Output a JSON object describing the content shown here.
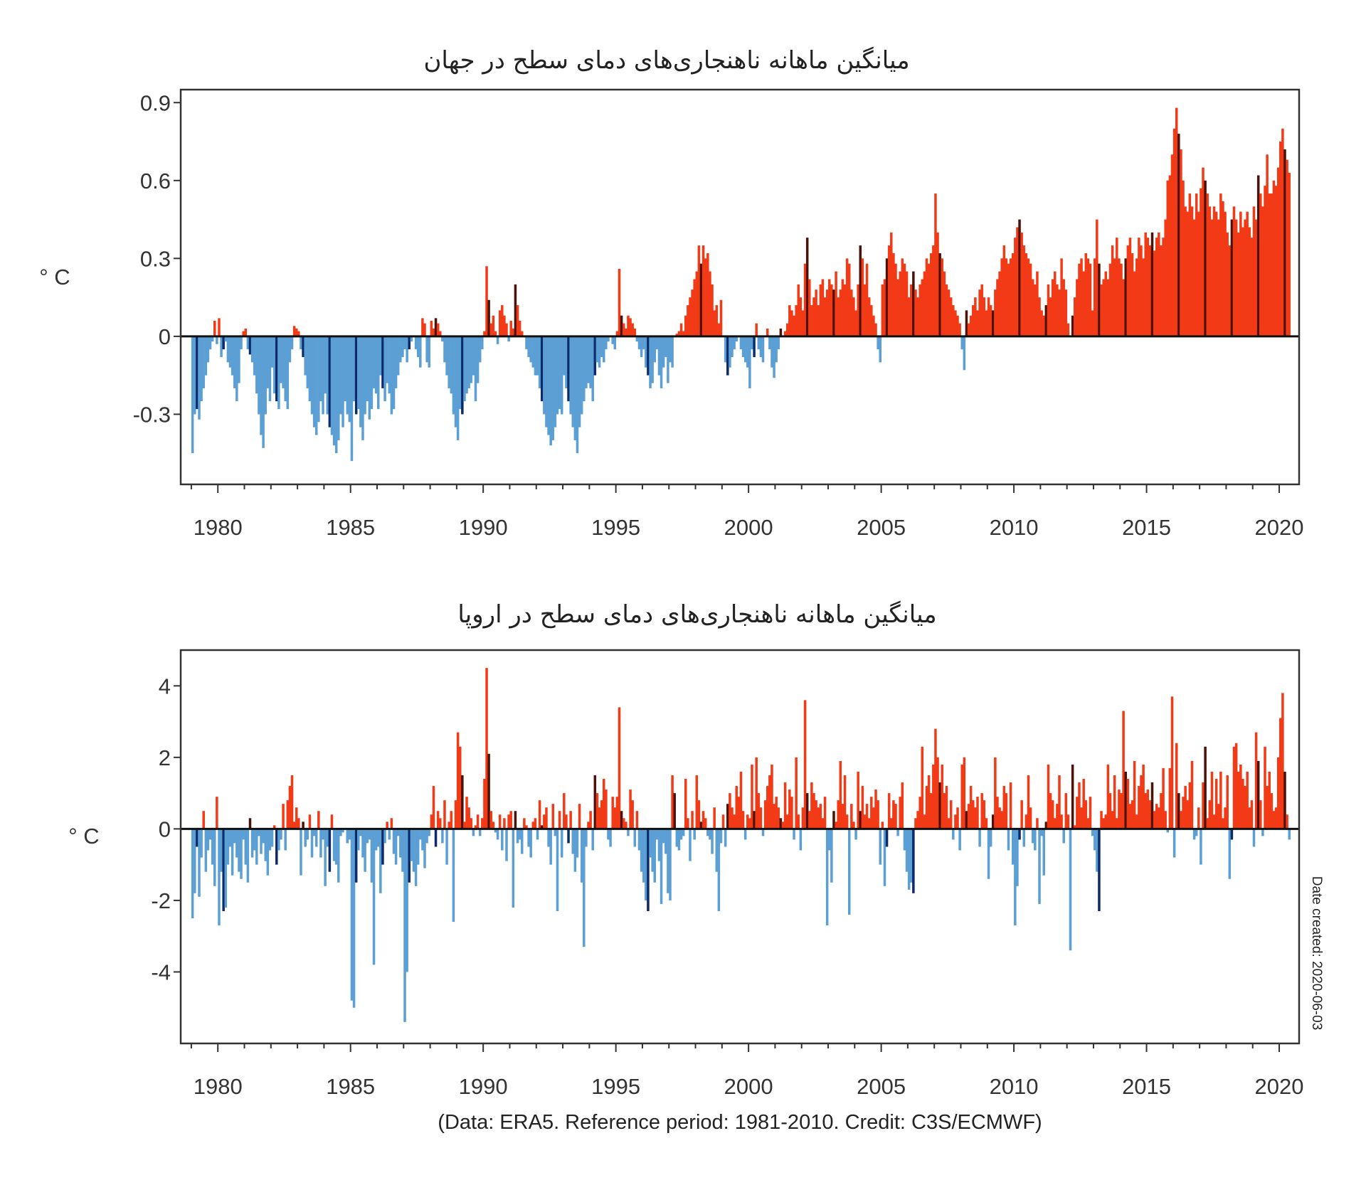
{
  "colors": {
    "negative": "#5b9fd4",
    "negative_highlight": "#0d2a6b",
    "positive": "#f23a16",
    "positive_highlight": "#4a1208",
    "zero_line": "#111111",
    "frame": "#333333"
  },
  "chart_data": [
    {
      "type": "bar",
      "title": "میانگین ماهانه ناهنجاری‌های دمای سطح  در جهان",
      "ylabel": "° C",
      "xlabel": "",
      "frequency": "monthly",
      "start": "1979-01",
      "end": "2020-05",
      "xlim": [
        1978.6,
        2020.75
      ],
      "ylim": [
        -0.57,
        0.95
      ],
      "xticks": [
        1980,
        1985,
        1990,
        1995,
        2000,
        2005,
        2010,
        2015,
        2020
      ],
      "xtick_labels": [
        "1980",
        "1985",
        "1990",
        "1995",
        "2000",
        "2005",
        "2010",
        "2015",
        "2020"
      ],
      "yticks": [
        -0.3,
        0,
        0.3,
        0.6,
        0.9
      ],
      "ytick_labels": [
        "-0.3",
        "0",
        "0.3",
        "0.6",
        "0.9"
      ],
      "grid": false,
      "values": [
        -0.45,
        -0.3,
        -0.28,
        -0.32,
        -0.25,
        -0.2,
        -0.15,
        -0.1,
        -0.05,
        -0.02,
        0.06,
        -0.03,
        0.07,
        -0.08,
        -0.05,
        -0.02,
        -0.1,
        -0.12,
        -0.15,
        -0.2,
        -0.25,
        -0.18,
        -0.05,
        0.02,
        0.03,
        -0.05,
        -0.07,
        -0.1,
        -0.15,
        -0.22,
        -0.3,
        -0.38,
        -0.43,
        -0.3,
        -0.2,
        -0.25,
        -0.12,
        -0.22,
        -0.25,
        -0.28,
        -0.18,
        -0.2,
        -0.25,
        -0.28,
        -0.1,
        -0.05,
        0.04,
        0.03,
        0.02,
        -0.05,
        -0.08,
        -0.15,
        -0.2,
        -0.25,
        -0.3,
        -0.35,
        -0.38,
        -0.33,
        -0.25,
        -0.3,
        -0.22,
        -0.3,
        -0.35,
        -0.38,
        -0.42,
        -0.45,
        -0.4,
        -0.3,
        -0.35,
        -0.25,
        -0.3,
        -0.33,
        -0.48,
        -0.25,
        -0.3,
        -0.28,
        -0.35,
        -0.4,
        -0.3,
        -0.25,
        -0.32,
        -0.28,
        -0.2,
        -0.22,
        -0.28,
        -0.15,
        -0.2,
        -0.25,
        -0.18,
        -0.22,
        -0.3,
        -0.28,
        -0.2,
        -0.15,
        -0.1,
        -0.08,
        -0.05,
        -0.1,
        -0.05,
        -0.02,
        0.0,
        -0.05,
        -0.08,
        -0.12,
        0.07,
        0.05,
        -0.1,
        -0.12,
        0.06,
        0.03,
        0.07,
        0.05,
        0.02,
        -0.02,
        -0.1,
        -0.15,
        -0.2,
        -0.22,
        -0.3,
        -0.35,
        -0.4,
        -0.28,
        -0.3,
        -0.25,
        -0.22,
        -0.2,
        -0.18,
        -0.15,
        -0.25,
        -0.18,
        -0.1,
        -0.05,
        0.02,
        0.27,
        0.14,
        0.05,
        0.08,
        0.02,
        -0.03,
        0.1,
        0.12,
        0.08,
        0.05,
        -0.02,
        0.06,
        0.03,
        0.2,
        0.12,
        0.06,
        0.02,
        0.0,
        -0.05,
        -0.08,
        -0.1,
        -0.12,
        -0.15,
        -0.15,
        -0.2,
        -0.25,
        -0.3,
        -0.35,
        -0.38,
        -0.42,
        -0.4,
        -0.35,
        -0.3,
        -0.28,
        -0.3,
        -0.15,
        -0.2,
        -0.25,
        -0.3,
        -0.35,
        -0.4,
        -0.45,
        -0.35,
        -0.3,
        -0.25,
        -0.2,
        -0.18,
        -0.2,
        -0.25,
        -0.15,
        -0.1,
        -0.12,
        -0.08,
        -0.1,
        -0.05,
        -0.02,
        0.0,
        -0.03,
        -0.05,
        0.02,
        0.26,
        0.08,
        0.05,
        0.03,
        0.08,
        0.07,
        0.05,
        0.03,
        -0.02,
        -0.05,
        -0.08,
        -0.05,
        -0.12,
        -0.15,
        -0.2,
        -0.18,
        -0.1,
        -0.05,
        -0.15,
        -0.2,
        -0.12,
        -0.08,
        -0.18,
        -0.1,
        -0.12,
        0.0,
        0.01,
        0.02,
        0.05,
        0.02,
        0.08,
        0.12,
        0.15,
        0.18,
        0.22,
        0.25,
        0.35,
        0.28,
        0.35,
        0.3,
        0.32,
        0.25,
        0.2,
        0.1,
        0.12,
        0.05,
        0.14,
        0.0,
        -0.1,
        -0.15,
        -0.12,
        -0.08,
        -0.05,
        -0.02,
        0.0,
        -0.05,
        -0.08,
        -0.1,
        -0.12,
        -0.2,
        -0.05,
        -0.08,
        0.05,
        -0.05,
        -0.08,
        -0.1,
        0.0,
        0.03,
        -0.05,
        -0.12,
        -0.16,
        -0.1,
        -0.05,
        0.03,
        0.0,
        0.02,
        0.05,
        0.12,
        0.1,
        0.08,
        0.12,
        0.2,
        0.15,
        0.1,
        0.28,
        0.38,
        0.22,
        0.12,
        0.15,
        0.18,
        0.12,
        0.2,
        0.22,
        0.15,
        0.18,
        0.22,
        0.2,
        0.18,
        0.25,
        0.15,
        0.18,
        0.22,
        0.2,
        0.3,
        0.28,
        0.18,
        0.15,
        0.1,
        0.2,
        0.35,
        0.3,
        0.2,
        0.28,
        0.15,
        0.12,
        0.08,
        0.05,
        -0.05,
        -0.1,
        0.2,
        0.22,
        0.3,
        0.35,
        0.4,
        0.32,
        0.28,
        0.22,
        0.25,
        0.3,
        0.28,
        0.25,
        0.15,
        0.2,
        0.25,
        0.18,
        0.15,
        0.2,
        0.22,
        0.25,
        0.3,
        0.28,
        0.32,
        0.35,
        0.55,
        0.4,
        0.32,
        0.3,
        0.25,
        0.2,
        0.18,
        0.15,
        0.12,
        0.1,
        0.08,
        0.05,
        -0.05,
        -0.13,
        0.1,
        0.05,
        0.08,
        0.12,
        0.15,
        0.1,
        0.18,
        0.2,
        0.15,
        0.1,
        0.15,
        0.12,
        0.1,
        0.18,
        0.22,
        0.25,
        0.3,
        0.35,
        0.3,
        0.28,
        0.3,
        0.32,
        0.38,
        0.42,
        0.45,
        0.4,
        0.35,
        0.32,
        0.3,
        0.28,
        0.22,
        0.2,
        0.25,
        0.15,
        0.1,
        0.08,
        0.12,
        0.2,
        0.15,
        0.22,
        0.25,
        0.2,
        0.18,
        0.3,
        0.22,
        0.18,
        0.05,
        0.0,
        0.08,
        0.15,
        0.22,
        0.28,
        0.3,
        0.25,
        0.32,
        0.3,
        0.28,
        0.1,
        0.3,
        0.45,
        0.28,
        0.2,
        0.22,
        0.25,
        0.22,
        0.28,
        0.35,
        0.3,
        0.38,
        0.3,
        0.28,
        0.22,
        0.3,
        0.35,
        0.38,
        0.32,
        0.25,
        0.3,
        0.38,
        0.35,
        0.3,
        0.4,
        0.38,
        0.35,
        0.4,
        0.33,
        0.38,
        0.4,
        0.35,
        0.38,
        0.45,
        0.6,
        0.62,
        0.7,
        0.8,
        0.88,
        0.78,
        0.72,
        0.6,
        0.5,
        0.48,
        0.55,
        0.5,
        0.45,
        0.55,
        0.48,
        0.57,
        0.65,
        0.6,
        0.55,
        0.5,
        0.45,
        0.5,
        0.48,
        0.45,
        0.55,
        0.52,
        0.48,
        0.4,
        0.35,
        0.45,
        0.5,
        0.45,
        0.4,
        0.48,
        0.42,
        0.45,
        0.48,
        0.42,
        0.38,
        0.5,
        0.45,
        0.62,
        0.55,
        0.5,
        0.58,
        0.7,
        0.55,
        0.55,
        0.6,
        0.58,
        0.65,
        0.75,
        0.8,
        0.72,
        0.68,
        0.63
      ]
    },
    {
      "type": "bar",
      "title": "میانگین ماهانه ناهنجاری‌های دمای سطح در اروپا",
      "ylabel": "° C",
      "xlabel": "",
      "frequency": "monthly",
      "start": "1979-01",
      "end": "2020-05",
      "xlim": [
        1978.6,
        2020.75
      ],
      "ylim": [
        -6,
        5
      ],
      "xticks": [
        1980,
        1985,
        1990,
        1995,
        2000,
        2005,
        2010,
        2015,
        2020
      ],
      "xtick_labels": [
        "1980",
        "1985",
        "1990",
        "1995",
        "2000",
        "2005",
        "2010",
        "2015",
        "2020"
      ],
      "yticks": [
        -4,
        -2,
        0,
        2,
        4
      ],
      "ytick_labels": [
        "-4",
        "-2",
        "0",
        "2",
        "4"
      ],
      "grid": false,
      "values": [
        -2.5,
        -1.8,
        -0.5,
        -1.9,
        -0.8,
        0.5,
        -1.2,
        -0.6,
        -0.3,
        -1.0,
        -1.6,
        0.9,
        -2.7,
        -1.2,
        -2.3,
        -2.2,
        -1.0,
        -0.5,
        -1.3,
        -0.4,
        -0.8,
        -1.2,
        -1.4,
        -0.3,
        -1.0,
        -1.5,
        0.3,
        -0.8,
        -0.6,
        -1.0,
        -0.2,
        -0.7,
        -0.4,
        -0.9,
        -1.3,
        -0.6,
        -0.5,
        0.1,
        -1.0,
        -0.6,
        -0.3,
        0.7,
        -0.6,
        0.8,
        1.2,
        1.5,
        0.2,
        0.6,
        0.3,
        -1.3,
        0.2,
        -0.5,
        -0.3,
        0.4,
        -0.8,
        -0.2,
        -0.5,
        0.5,
        -0.8,
        -0.3,
        -1.6,
        -0.5,
        -1.2,
        0.4,
        -0.9,
        -1.0,
        -1.5,
        -0.2,
        -0.1,
        0.0,
        -0.4,
        -0.3,
        -4.8,
        -5.0,
        -1.5,
        -0.6,
        -0.2,
        -0.8,
        -1.2,
        -0.4,
        -0.3,
        -1.5,
        -3.8,
        -0.6,
        -0.5,
        -1.8,
        -1.0,
        -0.4,
        0.2,
        -0.3,
        0.3,
        -0.7,
        -1.0,
        -0.2,
        -0.8,
        -1.2,
        -5.4,
        -4.0,
        -1.5,
        -0.9,
        -1.2,
        -1.6,
        -1.0,
        -0.3,
        -0.6,
        -1.1,
        -0.4,
        -0.2,
        0.4,
        1.2,
        -0.5,
        0.5,
        0.3,
        -0.4,
        0.8,
        -1.0,
        0.2,
        0.5,
        -2.6,
        0.8,
        2.7,
        2.3,
        1.5,
        0.2,
        0.9,
        0.6,
        0.3,
        -0.2,
        0.1,
        0.4,
        -0.2,
        0.3,
        1.4,
        4.5,
        2.1,
        0.5,
        0.2,
        -0.1,
        -0.3,
        0.4,
        -0.6,
        0.3,
        -0.9,
        0.4,
        0.5,
        -2.2,
        0.5,
        -0.4,
        -0.3,
        -0.7,
        0.3,
        0.1,
        -0.5,
        -0.8,
        0.2,
        0.3,
        -0.3,
        0.8,
        0.1,
        0.4,
        0.6,
        -0.5,
        -1.0,
        0.7,
        -0.2,
        -2.3,
        0.5,
        -0.8,
        1.0,
        0.4,
        -0.4,
        0.5,
        -0.7,
        -1.2,
        -0.8,
        0.7,
        -1.5,
        -3.3,
        -0.5,
        0.2,
        0.5,
        -0.6,
        1.5,
        1.0,
        0.6,
        0.8,
        1.4,
        1.1,
        -0.3,
        -0.5,
        0.9,
        0.6,
        0.9,
        3.4,
        0.5,
        0.3,
        0.2,
        -0.2,
        1.1,
        0.8,
        -0.5,
        0.5,
        -0.6,
        -1.2,
        -1.5,
        -2.0,
        -2.3,
        -0.8,
        -1.2,
        -1.5,
        -0.3,
        -0.9,
        -2.1,
        -0.4,
        -0.7,
        -1.8,
        -2.0,
        1.5,
        1.0,
        -0.5,
        -0.6,
        -0.3,
        -0.2,
        1.4,
        0.3,
        -0.9,
        0.5,
        -0.3,
        1.5,
        0.8,
        0.2,
        0.5,
        0.3,
        -0.2,
        -0.3,
        -0.7,
        0.6,
        -1.2,
        -2.3,
        -0.4,
        0.4,
        -0.5,
        0.7,
        1.0,
        0.6,
        0.4,
        1.2,
        0.9,
        1.6,
        0.5,
        -0.3,
        0.4,
        0.3,
        1.8,
        0.5,
        2.0,
        1.0,
        0.6,
        -0.2,
        0.8,
        1.2,
        1.5,
        1.8,
        0.7,
        0.9,
        0.6,
        0.3,
        0.2,
        1.3,
        0.4,
        1.1,
        0.9,
        -0.3,
        2.0,
        0.4,
        -0.6,
        0.6,
        3.6,
        1.0,
        0.5,
        1.3,
        1.0,
        0.8,
        0.6,
        0.7,
        0.3,
        0.9,
        -2.7,
        -0.6,
        -1.5,
        0.5,
        0.2,
        0.8,
        1.9,
        0.7,
        1.5,
        0.4,
        -2.4,
        0.7,
        0.2,
        -0.3,
        1.6,
        0.5,
        1.2,
        0.4,
        0.7,
        0.3,
        0.9,
        0.6,
        1.1,
        0.8,
        -1.0,
        0.2,
        -1.6,
        -0.5,
        1.0,
        0.3,
        0.8,
        0.7,
        -0.2,
        0.9,
        1.3,
        -0.6,
        -1.2,
        -1.7,
        -1.5,
        -1.8,
        0.3,
        0.5,
        0.9,
        2.3,
        0.4,
        1.2,
        1.5,
        1.0,
        1.8,
        2.8,
        2.0,
        1.3,
        1.8,
        1.0,
        1.2,
        0.3,
        0.8,
        -0.3,
        0.4,
        0.6,
        -0.6,
        1.8,
        2.0,
        0.5,
        0.7,
        1.2,
        0.8,
        0.6,
        0.9,
        -0.5,
        1.0,
        0.8,
        0.3,
        -1.4,
        -0.5,
        0.4,
        2.0,
        0.9,
        0.6,
        0.5,
        1.2,
        1.0,
        -0.6,
        1.3,
        -1.0,
        -2.7,
        -1.6,
        -0.3,
        0.8,
        -0.5,
        0.4,
        1.5,
        0.6,
        -0.4,
        -0.6,
        0.3,
        -2.1,
        -0.2,
        -1.3,
        0.2,
        1.8,
        1.0,
        0.8,
        0.3,
        0.7,
        1.5,
        0.4,
        -0.4,
        1.0,
        0.4,
        -3.4,
        1.8,
        0.1,
        0.9,
        1.3,
        0.6,
        1.4,
        0.8,
        0.3,
        0.9,
        -0.2,
        -0.6,
        -1.2,
        -2.3,
        0.5,
        0.3,
        0.4,
        1.8,
        1.0,
        0.5,
        1.5,
        0.3,
        1.1,
        1.0,
        3.3,
        1.6,
        1.4,
        0.7,
        0.8,
        1.9,
        0.4,
        1.2,
        1.5,
        1.8,
        1.0,
        1.1,
        0.8,
        1.3,
        0.5,
        0.7,
        0.6,
        1.0,
        1.7,
        0.5,
        -0.1,
        1.7,
        3.7,
        -0.8,
        2.4,
        1.0,
        0.5,
        0.9,
        1.2,
        0.8,
        1.3,
        1.9,
        -0.3,
        -0.2,
        0.6,
        -1.0,
        1.3,
        2.3,
        0.3,
        0.8,
        1.6,
        0.4,
        1.4,
        0.7,
        1.6,
        0.3,
        0.6,
        1.5,
        -1.4,
        -0.3,
        2.3,
        2.4,
        1.6,
        1.8,
        1.4,
        1.2,
        1.6,
        0.6,
        0.8,
        -0.5,
        2.7,
        1.9,
        0.8,
        -0.2,
        2.3,
        1.2,
        1.6,
        1.0,
        0.5,
        0.6,
        2.0,
        3.1,
        3.8,
        1.6,
        0.4,
        -0.3
      ]
    }
  ],
  "footer": {
    "credit": "(Data: ERA5.  Reference period: 1981-2010.  Credit: C3S/ECMWF)",
    "date_created": "Date created: 2020-06-03"
  }
}
